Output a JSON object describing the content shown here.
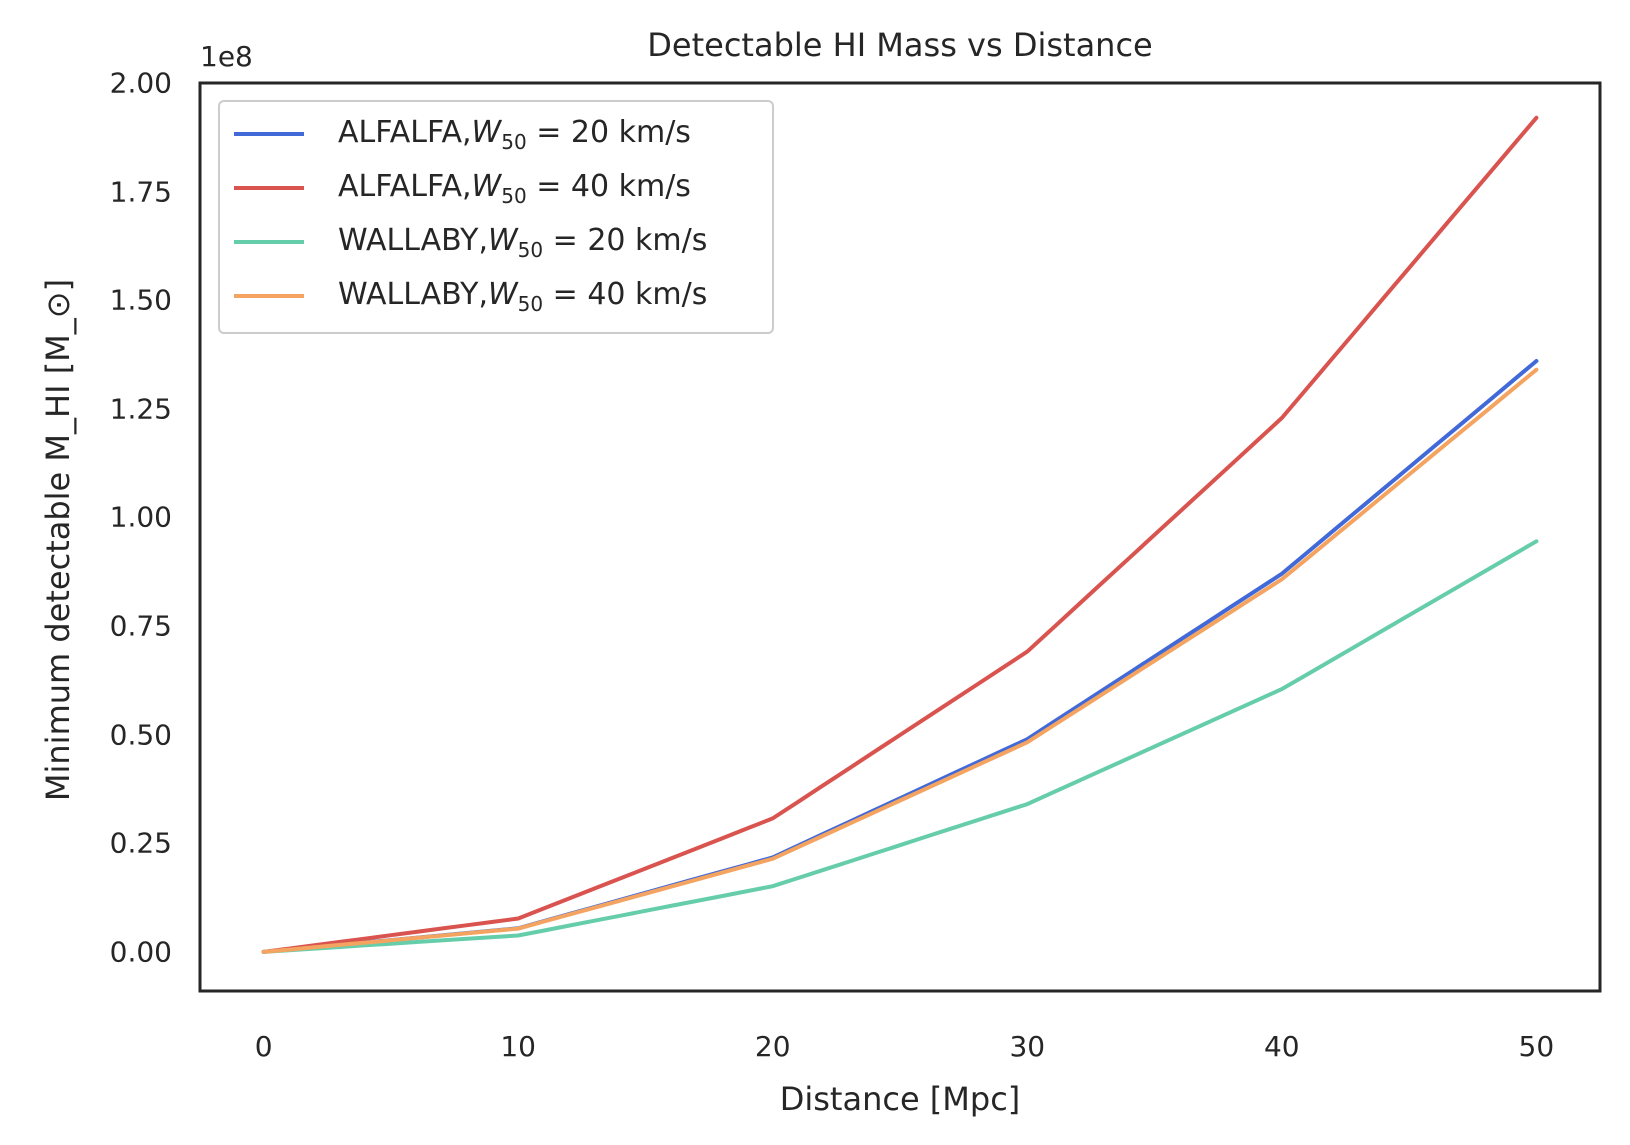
{
  "chart_data": {
    "type": "line",
    "title": "Detectable HI Mass vs Distance",
    "xlabel": "Distance [Mpc]",
    "ylabel": "Minimum detectable M_HI [M_⊙]",
    "y_offset_label": "1e8",
    "xlim": [
      -2.5,
      52.5
    ],
    "ylim": [
      -0.09,
      2.0
    ],
    "x_ticks": [
      "0",
      "10",
      "20",
      "30",
      "40",
      "50"
    ],
    "y_ticks": [
      "0.00",
      "0.25",
      "0.50",
      "0.75",
      "1.00",
      "1.25",
      "1.50",
      "1.75",
      "2.00"
    ],
    "legend_position": "upper-left",
    "grid": false,
    "series": [
      {
        "name": "ALFALFA,W50 = 20 km/s",
        "legend_text": "ALFALFA,",
        "legend_w": "W",
        "legend_sub": "50",
        "legend_rest": " = 20 km/s",
        "color": "#4169d8",
        "x": [
          0,
          10,
          20,
          30,
          40,
          50
        ],
        "y": [
          0.0,
          0.0544,
          0.2176,
          0.4896,
          0.8704,
          1.36
        ]
      },
      {
        "name": "ALFALFA,W50 = 40 km/s",
        "legend_text": "ALFALFA,",
        "legend_w": "W",
        "legend_sub": "50",
        "legend_rest": " = 40 km/s",
        "color": "#d9534f",
        "x": [
          0,
          10,
          20,
          30,
          40,
          50
        ],
        "y": [
          0.0,
          0.0768,
          0.3072,
          0.6912,
          1.2288,
          1.92
        ]
      },
      {
        "name": "WALLABY,W50 = 20 km/s",
        "legend_text": "WALLABY,",
        "legend_w": "W",
        "legend_sub": "50",
        "legend_rest": " = 20 km/s",
        "color": "#66cdaa",
        "x": [
          0,
          10,
          20,
          30,
          40,
          50
        ],
        "y": [
          0.0,
          0.0378,
          0.1512,
          0.3402,
          0.6048,
          0.945
        ]
      },
      {
        "name": "WALLABY,W50 = 40 km/s",
        "legend_text": "WALLABY,",
        "legend_w": "W",
        "legend_sub": "50",
        "legend_rest": " = 40 km/s",
        "color": "#f4a460",
        "x": [
          0,
          10,
          20,
          30,
          40,
          50
        ],
        "y": [
          0.0,
          0.0536,
          0.2144,
          0.4824,
          0.8576,
          1.34
        ]
      }
    ]
  }
}
